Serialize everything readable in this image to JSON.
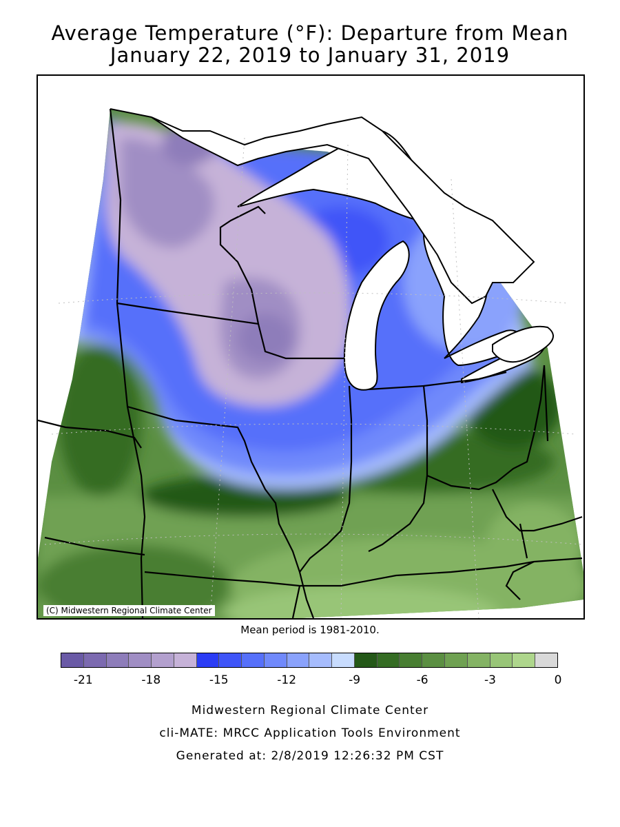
{
  "title": {
    "line1": "Average Temperature (°F): Departure from Mean",
    "line2": "January 22, 2019 to January 31, 2019"
  },
  "map": {
    "copyright": "(C) Midwestern Regional Climate Center",
    "mean_note": "Mean period is 1981-2010."
  },
  "legend": {
    "colors": [
      "#6a5aa6",
      "#7c6ab0",
      "#8e7dba",
      "#a08ec4",
      "#b3a0ce",
      "#c6b2d8",
      "#2b3cf5",
      "#3f55f8",
      "#5670fa",
      "#7089fb",
      "#8aa2fc",
      "#a6bcfd",
      "#c8dcfe",
      "#245818",
      "#356c24",
      "#487e32",
      "#5b8f42",
      "#6fa152",
      "#84b364",
      "#98c577",
      "#aed68c",
      "#d9d9d9"
    ],
    "ticks": [
      {
        "label": "-21",
        "value": -21
      },
      {
        "label": "-18",
        "value": -18
      },
      {
        "label": "-15",
        "value": -15
      },
      {
        "label": "-12",
        "value": -12
      },
      {
        "label": "-9",
        "value": -9
      },
      {
        "label": "-6",
        "value": -6
      },
      {
        "label": "-3",
        "value": -3
      },
      {
        "label": "0",
        "value": 0
      }
    ]
  },
  "credits": {
    "line1": "Midwestern Regional Climate Center",
    "line2": "cli-MATE: MRCC Application Tools Environment",
    "line3": "Generated at: 2/8/2019 12:26:32 PM CST"
  }
}
